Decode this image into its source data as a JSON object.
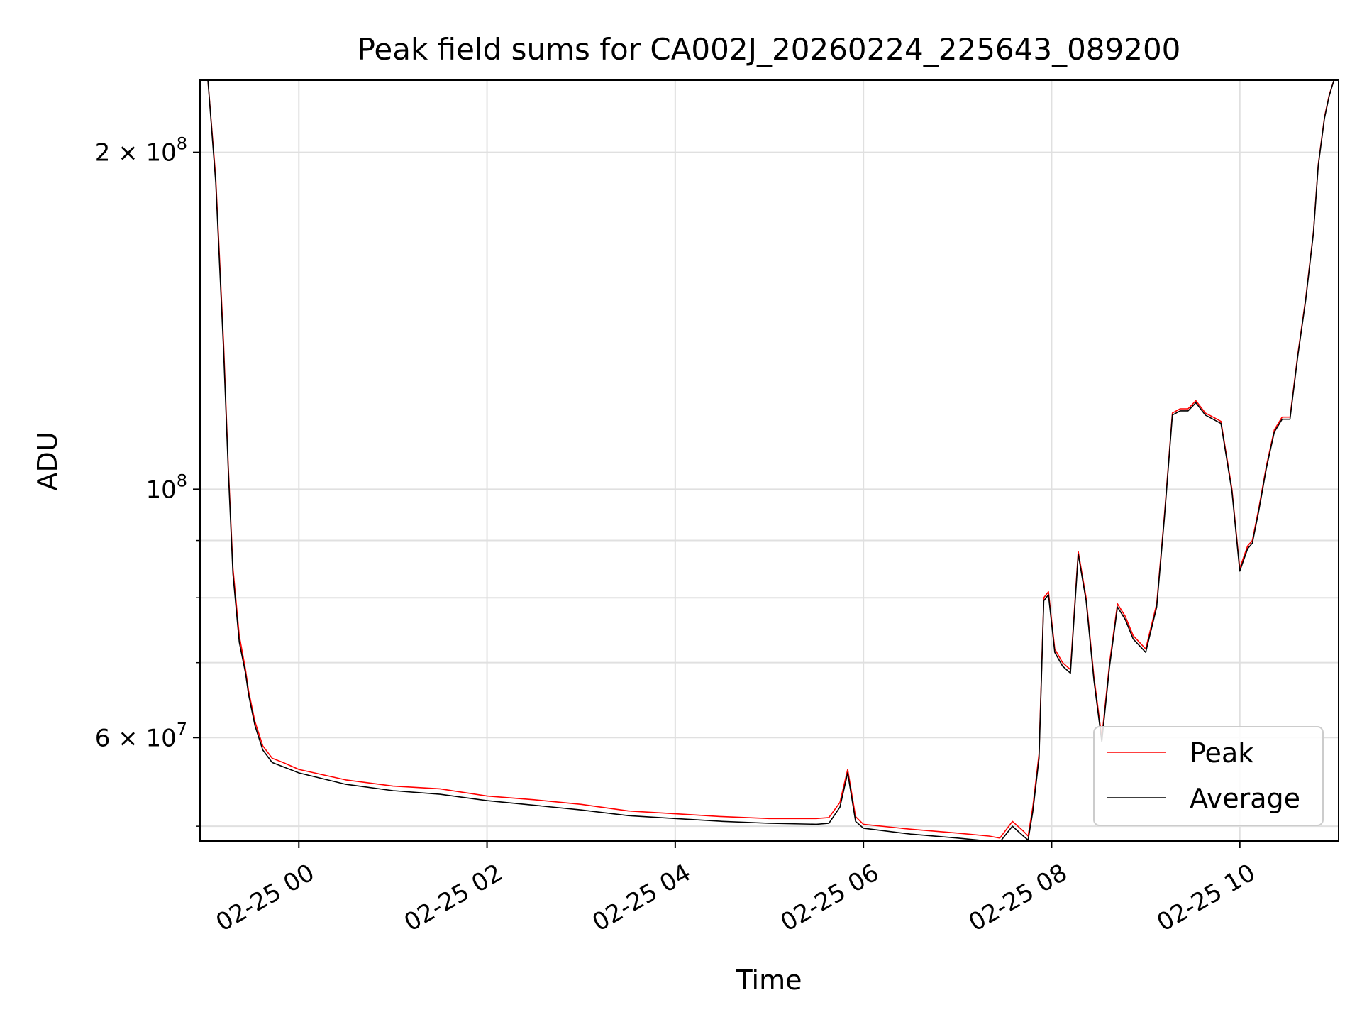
{
  "chart_data": {
    "type": "line",
    "title": "Peak field sums for CA002J_20260224_225643_089200",
    "xlabel": "Time",
    "ylabel": "ADU",
    "y_scale": "log",
    "x_axis": "datetime",
    "xlim": [
      "2026-02-24 22:57",
      "2026-02-25 11:03"
    ],
    "ylim": [
      48500000,
      232000000
    ],
    "x_ticks": [
      {
        "value": "2026-02-25 00:00",
        "label": "02-25 00"
      },
      {
        "value": "2026-02-25 02:00",
        "label": "02-25 02"
      },
      {
        "value": "2026-02-25 04:00",
        "label": "02-25 04"
      },
      {
        "value": "2026-02-25 06:00",
        "label": "02-25 06"
      },
      {
        "value": "2026-02-25 08:00",
        "label": "02-25 08"
      },
      {
        "value": "2026-02-25 10:00",
        "label": "02-25 10"
      }
    ],
    "y_ticks": [
      {
        "value": 60000000,
        "label": "6 × 10",
        "exp": "7"
      },
      {
        "value": 100000000,
        "label": "10",
        "exp": "8"
      },
      {
        "value": 200000000,
        "label": "2 × 10",
        "exp": "8"
      }
    ],
    "y_minor_ticks": [
      50000000,
      70000000,
      80000000,
      90000000
    ],
    "grid": true,
    "legend": "lower right",
    "series": [
      {
        "name": "Peak",
        "color": "#ff0000",
        "x": [
          "2026-02-24 22:57",
          "2026-02-24 23:02",
          "2026-02-24 23:07",
          "2026-02-24 23:12",
          "2026-02-24 23:15",
          "2026-02-24 23:18",
          "2026-02-24 23:22",
          "2026-02-24 23:26",
          "2026-02-24 23:28",
          "2026-02-24 23:32",
          "2026-02-24 23:37",
          "2026-02-24 23:43",
          "2026-02-24 23:50",
          "2026-02-25 00:00",
          "2026-02-25 00:30",
          "2026-02-25 01:00",
          "2026-02-25 01:30",
          "2026-02-25 02:00",
          "2026-02-25 02:30",
          "2026-02-25 03:00",
          "2026-02-25 03:30",
          "2026-02-25 04:00",
          "2026-02-25 04:30",
          "2026-02-25 05:00",
          "2026-02-25 05:30",
          "2026-02-25 05:38",
          "2026-02-25 05:45",
          "2026-02-25 05:50",
          "2026-02-25 05:55",
          "2026-02-25 06:00",
          "2026-02-25 06:30",
          "2026-02-25 07:00",
          "2026-02-25 07:20",
          "2026-02-25 07:27",
          "2026-02-25 07:35",
          "2026-02-25 07:42",
          "2026-02-25 07:45",
          "2026-02-25 07:48",
          "2026-02-25 07:52",
          "2026-02-25 07:55",
          "2026-02-25 07:58",
          "2026-02-25 08:02",
          "2026-02-25 08:07",
          "2026-02-25 08:12",
          "2026-02-25 08:17",
          "2026-02-25 08:22",
          "2026-02-25 08:27",
          "2026-02-25 08:32",
          "2026-02-25 08:37",
          "2026-02-25 08:42",
          "2026-02-25 08:47",
          "2026-02-25 08:52",
          "2026-02-25 09:00",
          "2026-02-25 09:07",
          "2026-02-25 09:12",
          "2026-02-25 09:17",
          "2026-02-25 09:22",
          "2026-02-25 09:27",
          "2026-02-25 09:32",
          "2026-02-25 09:38",
          "2026-02-25 09:43",
          "2026-02-25 09:48",
          "2026-02-25 09:55",
          "2026-02-25 10:00",
          "2026-02-25 10:05",
          "2026-02-25 10:08",
          "2026-02-25 10:12",
          "2026-02-25 10:17",
          "2026-02-25 10:22",
          "2026-02-25 10:27",
          "2026-02-25 10:32",
          "2026-02-25 10:37",
          "2026-02-25 10:42",
          "2026-02-25 10:47",
          "2026-02-25 10:50",
          "2026-02-25 10:54",
          "2026-02-25 10:57",
          "2026-02-25 11:00",
          "2026-02-25 11:03"
        ],
        "values": [
          232000000,
          232000000,
          190000000,
          135000000,
          105000000,
          85000000,
          74000000,
          69000000,
          66000000,
          62000000,
          59000000,
          57500000,
          57000000,
          56200000,
          55000000,
          54300000,
          54000000,
          53200000,
          52800000,
          52300000,
          51600000,
          51300000,
          51000000,
          50800000,
          50800000,
          50900000,
          52500000,
          56200000,
          51000000,
          50200000,
          49700000,
          49300000,
          49000000,
          48800000,
          50500000,
          49500000,
          49000000,
          52000000,
          58000000,
          80000000,
          81000000,
          72000000,
          70000000,
          69000000,
          88000000,
          80000000,
          68000000,
          60000000,
          70000000,
          79000000,
          77000000,
          74000000,
          72000000,
          79000000,
          95000000,
          117000000,
          118000000,
          118000000,
          120000000,
          117000000,
          116000000,
          115000000,
          100000000,
          85000000,
          89000000,
          90000000,
          96000000,
          105000000,
          113000000,
          116000000,
          116000000,
          132000000,
          148000000,
          170000000,
          195000000,
          215000000,
          225000000,
          232000000,
          232000000
        ]
      },
      {
        "name": "Average",
        "color": "#000000",
        "x": [
          "2026-02-24 22:57",
          "2026-02-24 23:02",
          "2026-02-24 23:07",
          "2026-02-24 23:12",
          "2026-02-24 23:15",
          "2026-02-24 23:18",
          "2026-02-24 23:22",
          "2026-02-24 23:26",
          "2026-02-24 23:28",
          "2026-02-24 23:32",
          "2026-02-24 23:37",
          "2026-02-24 23:43",
          "2026-02-24 23:50",
          "2026-02-25 00:00",
          "2026-02-25 00:30",
          "2026-02-25 01:00",
          "2026-02-25 01:30",
          "2026-02-25 02:00",
          "2026-02-25 02:30",
          "2026-02-25 03:00",
          "2026-02-25 03:30",
          "2026-02-25 04:00",
          "2026-02-25 04:30",
          "2026-02-25 05:00",
          "2026-02-25 05:30",
          "2026-02-25 05:38",
          "2026-02-25 05:45",
          "2026-02-25 05:50",
          "2026-02-25 05:55",
          "2026-02-25 06:00",
          "2026-02-25 06:30",
          "2026-02-25 07:00",
          "2026-02-25 07:20",
          "2026-02-25 07:27",
          "2026-02-25 07:35",
          "2026-02-25 07:42",
          "2026-02-25 07:45",
          "2026-02-25 07:48",
          "2026-02-25 07:52",
          "2026-02-25 07:55",
          "2026-02-25 07:58",
          "2026-02-25 08:02",
          "2026-02-25 08:07",
          "2026-02-25 08:12",
          "2026-02-25 08:17",
          "2026-02-25 08:22",
          "2026-02-25 08:27",
          "2026-02-25 08:32",
          "2026-02-25 08:37",
          "2026-02-25 08:42",
          "2026-02-25 08:47",
          "2026-02-25 08:52",
          "2026-02-25 09:00",
          "2026-02-25 09:07",
          "2026-02-25 09:12",
          "2026-02-25 09:17",
          "2026-02-25 09:22",
          "2026-02-25 09:27",
          "2026-02-25 09:32",
          "2026-02-25 09:38",
          "2026-02-25 09:43",
          "2026-02-25 09:48",
          "2026-02-25 09:55",
          "2026-02-25 10:00",
          "2026-02-25 10:05",
          "2026-02-25 10:08",
          "2026-02-25 10:12",
          "2026-02-25 10:17",
          "2026-02-25 10:22",
          "2026-02-25 10:27",
          "2026-02-25 10:32",
          "2026-02-25 10:37",
          "2026-02-25 10:42",
          "2026-02-25 10:47",
          "2026-02-25 10:50",
          "2026-02-25 10:54",
          "2026-02-25 10:57",
          "2026-02-25 11:00",
          "2026-02-25 11:03"
        ],
        "values": [
          232000000,
          232000000,
          188000000,
          133000000,
          104000000,
          84000000,
          73000000,
          68500000,
          65500000,
          61500000,
          58500000,
          57000000,
          56500000,
          55800000,
          54500000,
          53800000,
          53400000,
          52700000,
          52200000,
          51700000,
          51100000,
          50800000,
          50500000,
          50300000,
          50200000,
          50300000,
          52000000,
          55800000,
          50500000,
          49800000,
          49200000,
          48800000,
          48500000,
          48400000,
          50000000,
          49000000,
          48600000,
          51500000,
          57500000,
          79500000,
          80500000,
          71500000,
          69500000,
          68500000,
          87500000,
          79500000,
          67500000,
          59500000,
          69500000,
          78500000,
          76500000,
          73500000,
          71500000,
          78500000,
          94500000,
          116500000,
          117500000,
          117500000,
          119500000,
          116500000,
          115500000,
          114500000,
          99500000,
          84500000,
          88500000,
          89500000,
          95500000,
          104500000,
          112500000,
          115500000,
          115500000,
          131500000,
          147500000,
          169500000,
          194500000,
          214500000,
          224500000,
          232000000,
          232000000
        ]
      }
    ]
  }
}
